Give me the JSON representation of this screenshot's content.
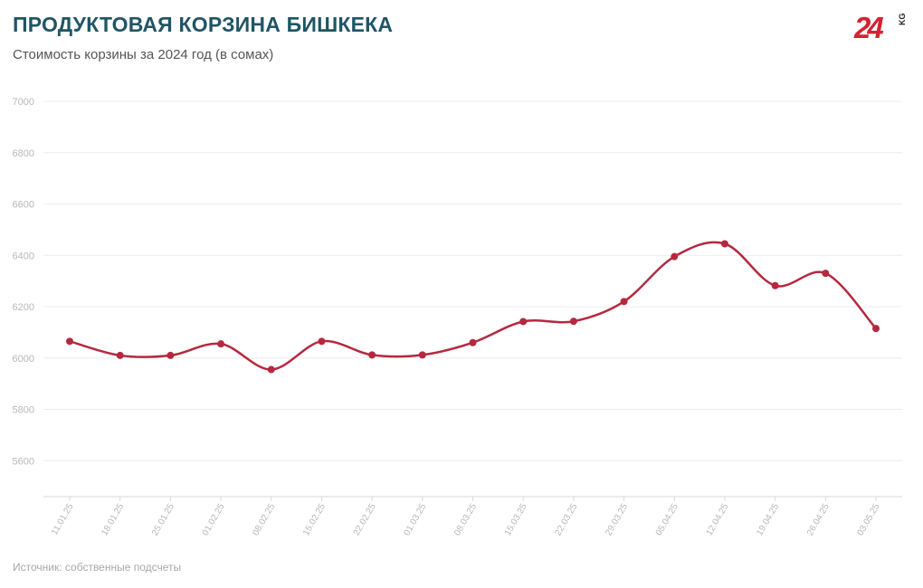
{
  "header": {
    "title": "ПРОДУКТОВАЯ КОРЗИНА БИШКЕКА",
    "subtitle": "Стоимость корзины за 2024 год (в сомах)"
  },
  "logo": {
    "number": "24",
    "suffix": "KG"
  },
  "footer": {
    "source": "Источник: собственные подсчеты"
  },
  "colors": {
    "line": "#b5283f",
    "title": "#1f5566",
    "logo": "#d42233"
  },
  "chart_data": {
    "type": "line",
    "title": "ПРОДУКТОВАЯ КОРЗИНА БИШКЕКА",
    "subtitle": "Стоимость корзины за 2024 год (в сомах)",
    "xlabel": "",
    "ylabel": "",
    "categories": [
      "11.01.25",
      "18.01.25",
      "25.01.25",
      "01.02.25",
      "08.02.25",
      "15.02.25",
      "22.02.25",
      "01.03.25",
      "08.03.25",
      "15.03.25",
      "22.03.25",
      "29.03.25",
      "05.04.25",
      "12.04.25",
      "19.04.25",
      "26.04.25",
      "03.05.25"
    ],
    "series": [
      {
        "values": [
          6065,
          6010,
          6010,
          6055,
          5955,
          6065,
          6012,
          6012,
          6060,
          6142,
          6143,
          6220,
          6395,
          6445,
          6282,
          6330,
          6115
        ]
      }
    ],
    "ylim": [
      5460,
      7000
    ],
    "yticks": [
      5600,
      5800,
      6000,
      6200,
      6400,
      6600,
      6800,
      7000
    ],
    "grid": true,
    "legend": "none"
  }
}
